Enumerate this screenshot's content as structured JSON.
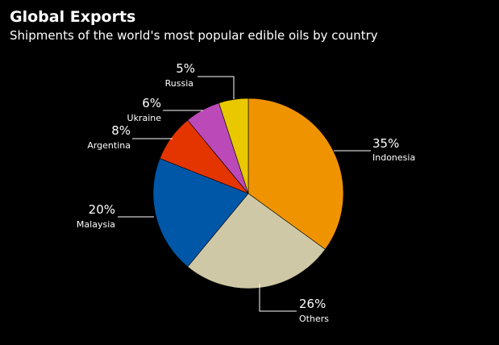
{
  "header": {
    "title": "Global Exports",
    "subtitle": "Shipments of the world's most popular edible oils by country"
  },
  "chart_data": {
    "type": "pie",
    "title": "Global Exports",
    "subtitle": "Shipments of the world's most popular edible oils by country",
    "slices": [
      {
        "label": "Indonesia",
        "value": 35,
        "value_label": "35%",
        "color": "#f09300"
      },
      {
        "label": "Others",
        "value": 26,
        "value_label": "26%",
        "color": "#cfc8a6"
      },
      {
        "label": "Malaysia",
        "value": 20,
        "value_label": "20%",
        "color": "#0057a8"
      },
      {
        "label": "Argentina",
        "value": 8,
        "value_label": "8%",
        "color": "#e43400"
      },
      {
        "label": "Ukraine",
        "value": 6,
        "value_label": "6%",
        "color": "#bb4ab8"
      },
      {
        "label": "Russia",
        "value": 5,
        "value_label": "5%",
        "color": "#e9c800"
      }
    ],
    "start_angle": "12 o'clock",
    "direction": "clockwise",
    "legend": "none",
    "data_labels": "outside with leader lines"
  }
}
